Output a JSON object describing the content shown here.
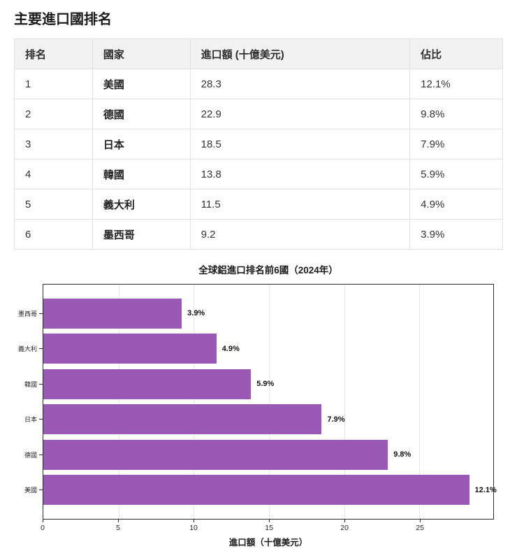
{
  "page": {
    "title": "主要進口國排名"
  },
  "table": {
    "headers": [
      "排名",
      "國家",
      "進口額 (十億美元)",
      "佔比"
    ],
    "rows": [
      {
        "rank": "1",
        "country": "美國",
        "amount": "28.3",
        "share": "12.1%"
      },
      {
        "rank": "2",
        "country": "德國",
        "amount": "22.9",
        "share": "9.8%"
      },
      {
        "rank": "3",
        "country": "日本",
        "amount": "18.5",
        "share": "7.9%"
      },
      {
        "rank": "4",
        "country": "韓國",
        "amount": "13.8",
        "share": "5.9%"
      },
      {
        "rank": "5",
        "country": "義大利",
        "amount": "11.5",
        "share": "4.9%"
      },
      {
        "rank": "6",
        "country": "墨西哥",
        "amount": "9.2",
        "share": "3.9%"
      }
    ]
  },
  "chart_data": {
    "type": "bar",
    "orientation": "horizontal",
    "title": "全球鋁進口排名前6國（2024年）",
    "xlabel": "進口額（十億美元）",
    "ylabel": "",
    "categories_top_to_bottom": [
      "墨西哥",
      "義大利",
      "韓國",
      "日本",
      "德國",
      "美國"
    ],
    "values": [
      9.2,
      11.5,
      13.8,
      18.5,
      22.9,
      28.3
    ],
    "bar_labels": [
      "3.9%",
      "4.9%",
      "5.9%",
      "7.9%",
      "9.8%",
      "12.1%"
    ],
    "xticks": [
      0,
      5,
      10,
      15,
      20,
      25
    ],
    "xlim": [
      0,
      29.9
    ],
    "grid": true,
    "legend": "none",
    "bar_color": "#9b59b6",
    "spine_color": "#2b2b2b",
    "grid_color": "#e7e7e7"
  }
}
